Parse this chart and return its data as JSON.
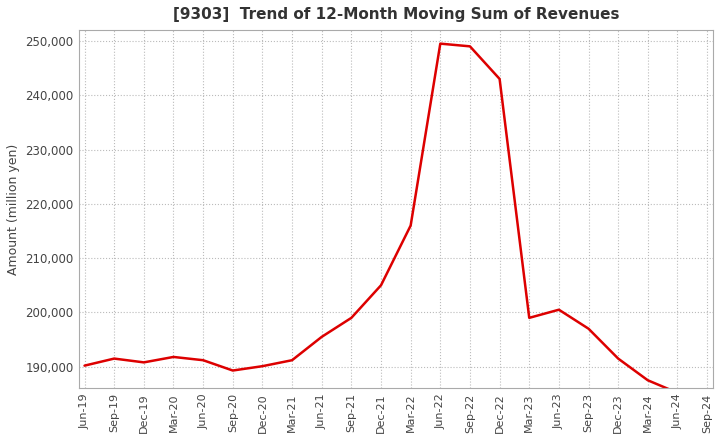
{
  "title": "[9303]  Trend of 12-Month Moving Sum of Revenues",
  "ylabel": "Amount (million yen)",
  "line_color": "#dd0000",
  "line_width": 1.8,
  "background_color": "#ffffff",
  "grid_color": "#bbbbbb",
  "ylim": [
    186000,
    252000
  ],
  "yticks": [
    190000,
    200000,
    210000,
    220000,
    230000,
    240000,
    250000
  ],
  "x_labels": [
    "Jun-19",
    "Sep-19",
    "Dec-19",
    "Mar-20",
    "Jun-20",
    "Sep-20",
    "Dec-20",
    "Mar-21",
    "Jun-21",
    "Sep-21",
    "Dec-21",
    "Mar-22",
    "Jun-22",
    "Sep-22",
    "Dec-22",
    "Mar-23",
    "Jun-23",
    "Sep-23",
    "Dec-23",
    "Mar-24",
    "Jun-24",
    "Sep-24"
  ],
  "x_values": [
    0,
    1,
    2,
    3,
    4,
    5,
    6,
    7,
    8,
    9,
    10,
    11,
    12,
    13,
    14,
    15,
    16,
    17,
    18,
    19,
    20,
    21
  ],
  "y_values": [
    190200,
    191500,
    190800,
    191800,
    191200,
    189300,
    190100,
    191200,
    195500,
    199000,
    205000,
    216000,
    249500,
    249000,
    243000,
    199000,
    200500,
    197000,
    191500,
    187500,
    185200,
    184500
  ]
}
